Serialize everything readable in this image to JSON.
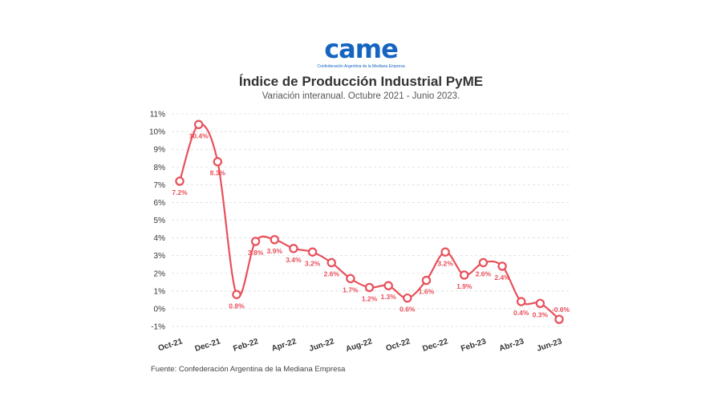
{
  "logo": {
    "word": "came",
    "subtitle": "Confederación Argentina de la Mediana Empresa"
  },
  "title": "Índice de Producción Industrial PyME",
  "subtitle": "Variación interanual. Octubre 2021 - Junio 2023.",
  "source": "Fuente: Confederación Argentina de la Mediana Empresa",
  "colors": {
    "line": "#e8505b",
    "label": "#e8505b",
    "grid": "#dddddd"
  },
  "chart_data": {
    "type": "line",
    "title": "Índice de Producción Industrial PyME",
    "subtitle": "Variación interanual. Octubre 2021 - Junio 2023.",
    "xlabel": "",
    "ylabel": "",
    "ylim": [
      -1,
      11
    ],
    "yticks": [
      "11%",
      "10%",
      "9%",
      "8%",
      "7%",
      "6%",
      "5%",
      "4%",
      "3%",
      "2%",
      "1%",
      "0%",
      "-1%"
    ],
    "x": [
      "Oct-21",
      "Nov-21",
      "Dec-21",
      "Jan-22",
      "Feb-22",
      "Mar-22",
      "Apr-22",
      "May-22",
      "Jun-22",
      "Jul-22",
      "Aug-22",
      "Sep-22",
      "Oct-22",
      "Nov-22",
      "Dec-22",
      "Jan-23",
      "Feb-23",
      "Mar-23",
      "Abr-23",
      "May-23",
      "Jun-23"
    ],
    "xtick_labels": [
      "Oct-21",
      "Dec-21",
      "Feb-22",
      "Apr-22",
      "Jun-22",
      "Aug-22",
      "Oct-22",
      "Dec-22",
      "Feb-23",
      "Abr-23",
      "Jun-23"
    ],
    "values": [
      7.2,
      10.4,
      8.3,
      0.8,
      3.8,
      3.9,
      3.4,
      3.2,
      2.6,
      1.7,
      1.2,
      1.3,
      0.6,
      1.6,
      3.2,
      1.9,
      2.6,
      2.4,
      0.4,
      0.3,
      -0.6
    ],
    "data_labels": [
      "7.2%",
      "10.4%",
      "8.3%",
      "0.8%",
      "3.8%",
      "3.9%",
      "3.4%",
      "3.2%",
      "2.6%",
      "1.7%",
      "1.2%",
      "1.3%",
      "0.6%",
      "1.6%",
      "3.2%",
      "1.9%",
      "2.6%",
      "2.4%",
      "0.4%",
      "0.3%",
      "-0.6%"
    ],
    "grid": true,
    "legend": "none"
  }
}
